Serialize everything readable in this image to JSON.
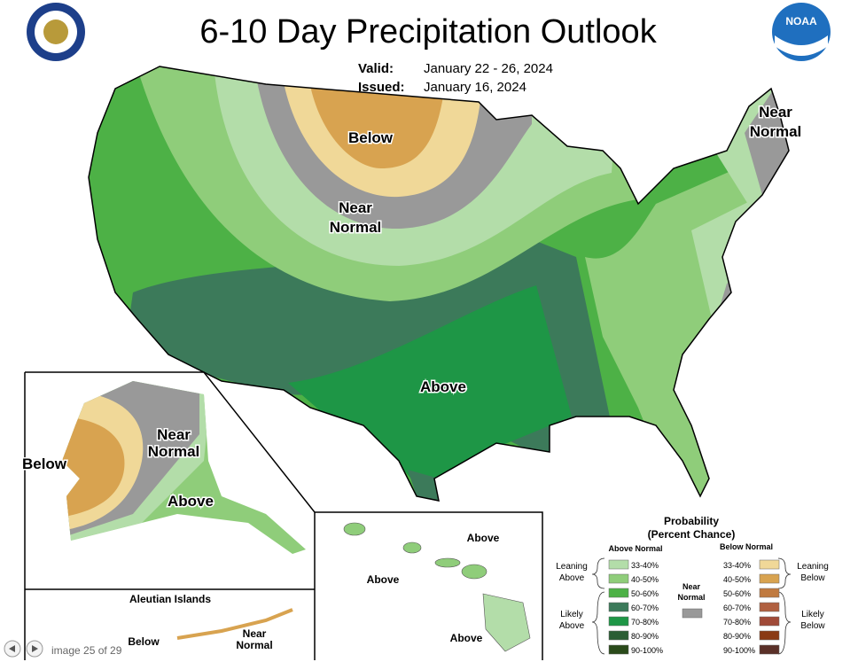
{
  "header": {
    "title": "6-10 Day Precipitation Outlook",
    "valid_label": "Valid:",
    "valid_dates": "January 22 - 26, 2024",
    "issued_label": "Issued:",
    "issued_date": "January 16, 2024",
    "noaa": "NOAA"
  },
  "map_labels": {
    "conus_below": "Below",
    "conus_near": [
      "Near",
      "Normal"
    ],
    "conus_above": "Above",
    "northeast_near": [
      "Near",
      "Normal"
    ],
    "alaska_below": "Below",
    "alaska_near": [
      "Near",
      "Normal"
    ],
    "alaska_above": "Above",
    "aleutian_title": "Aleutian Islands",
    "aleutian_below": "Below",
    "aleutian_near": [
      "Near",
      "Normal"
    ],
    "hawaii_above": [
      "Above",
      "Above",
      "Above"
    ]
  },
  "legend": {
    "title": "Probability",
    "subtitle": "(Percent Chance)",
    "above_heading": "Above Normal",
    "below_heading": "Below Normal",
    "near": [
      "Near",
      "Normal"
    ],
    "near_color": "#999999",
    "leaning_above": [
      "Leaning",
      "Above"
    ],
    "likely_above": [
      "Likely",
      "Above"
    ],
    "leaning_below": [
      "Leaning",
      "Below"
    ],
    "likely_below": [
      "Likely",
      "Below"
    ],
    "above": [
      {
        "label": "33-40%",
        "color": "#b3dda9"
      },
      {
        "label": "40-50%",
        "color": "#8fcd7a"
      },
      {
        "label": "50-60%",
        "color": "#4db146"
      },
      {
        "label": "60-70%",
        "color": "#3c7a5a"
      },
      {
        "label": "70-80%",
        "color": "#1e9646"
      },
      {
        "label": "80-90%",
        "color": "#2b5e34"
      },
      {
        "label": "90-100%",
        "color": "#2a4a1a"
      }
    ],
    "below": [
      {
        "label": "33-40%",
        "color": "#f0d898"
      },
      {
        "label": "40-50%",
        "color": "#d8a350"
      },
      {
        "label": "50-60%",
        "color": "#c07a40"
      },
      {
        "label": "60-70%",
        "color": "#b06040"
      },
      {
        "label": "70-80%",
        "color": "#a04a38"
      },
      {
        "label": "80-90%",
        "color": "#8a3a14"
      },
      {
        "label": "90-100%",
        "color": "#5a3028"
      }
    ]
  },
  "footer": {
    "pager": "image 25 of 29"
  }
}
